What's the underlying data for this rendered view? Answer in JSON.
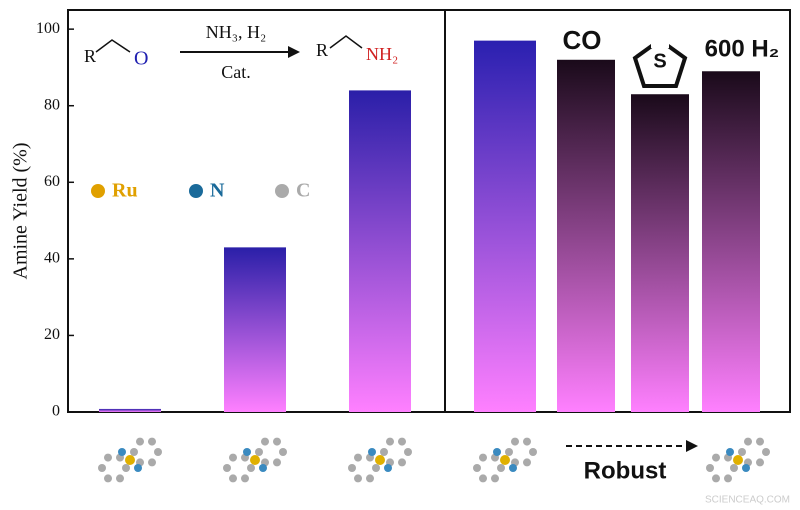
{
  "chart_data": {
    "type": "bar",
    "y_label": "Amine Yield (%)",
    "categories": [
      null,
      null,
      null,
      null,
      null,
      null,
      null
    ],
    "values": [
      0.8,
      43,
      84,
      97,
      92,
      83,
      89
    ],
    "colors": [
      "#2a1fa8",
      "#2a1fa8",
      "#2a1fa8",
      "#2a20b0",
      "#1a0a1a",
      "#1a0a1a",
      "#1a0a1a"
    ],
    "bar_base_color": "#ff80ff",
    "ylim": [
      0,
      105
    ],
    "yticks": [
      0,
      20,
      40,
      60,
      80,
      100
    ],
    "grid": false,
    "reaction": {
      "reactant_r": "R",
      "reactant_o": "O",
      "reagents": "NH₃, H₂",
      "catalyst": "Cat.",
      "product_r": "R",
      "product_nh2": "NH₂"
    },
    "legend": [
      {
        "name": "Ru",
        "color": "#e0a000"
      },
      {
        "name": "N",
        "color": "#1a6a9a"
      },
      {
        "name": "C",
        "color": "#aaaaaa"
      }
    ],
    "annotations": [
      "CO",
      "S",
      "600 H₂",
      "Robust"
    ],
    "watermark": "SCIENCEAQ.COM"
  }
}
